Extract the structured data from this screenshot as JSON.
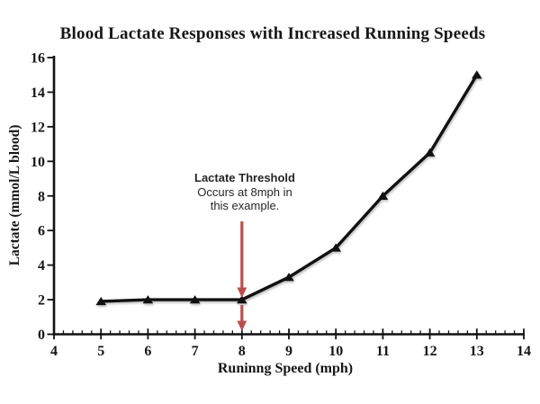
{
  "chart_data": {
    "type": "line",
    "title": "Blood Lactate Responses with Increased Running Speeds",
    "xlabel": "Runinng Speed (mph)",
    "ylabel": "Lactate (mmol/L blood)",
    "x": [
      5,
      6,
      7,
      8,
      9,
      10,
      11,
      12,
      13
    ],
    "values": [
      1.9,
      2.0,
      2.0,
      2.0,
      3.3,
      5.0,
      8.0,
      10.5,
      15.0
    ],
    "xlim": [
      4,
      14
    ],
    "ylim": [
      0,
      16
    ],
    "x_ticks": [
      4,
      5,
      6,
      7,
      8,
      9,
      10,
      11,
      12,
      13,
      14
    ],
    "y_ticks": [
      0,
      2,
      4,
      6,
      8,
      10,
      12,
      14,
      16
    ],
    "x_minor_step": 0.2,
    "grid": false,
    "legend": "none",
    "marker": "triangle-up",
    "line_color": "#111111",
    "axis_color": "#111111",
    "text_color": "#161616",
    "annotation": {
      "lines": [
        "Lactate Threshold",
        "Occurs at 8mph in",
        "this example."
      ],
      "arrow_color": "#b9504c",
      "arrow_x_value": 8,
      "upper_arrow": {
        "from_value": 6.53,
        "tip_value": 2.11
      },
      "lower_arrow": {
        "from_value": 1.69,
        "tip_value": 0.18
      }
    }
  }
}
